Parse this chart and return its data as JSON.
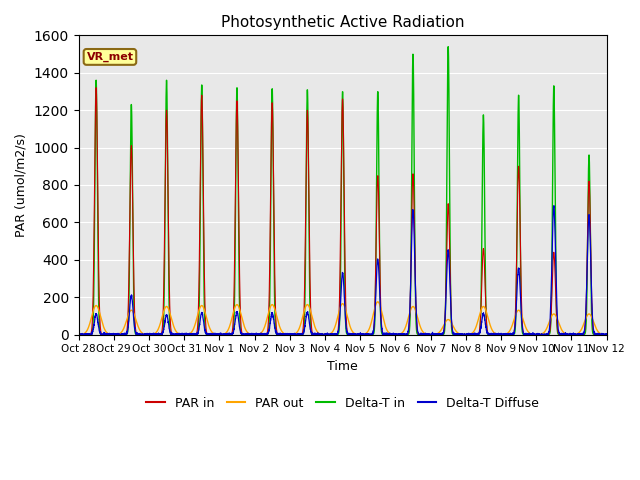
{
  "title": "Photosynthetic Active Radiation",
  "ylabel": "PAR (umol/m2/s)",
  "xlabel": "Time",
  "label_text": "VR_met",
  "ylim": [
    0,
    1600
  ],
  "background_color": "#e8e8e8",
  "line_colors": {
    "par_in": "#cc0000",
    "par_out": "#ffa500",
    "delta_t_in": "#00bb00",
    "delta_t_diffuse": "#0000cc"
  },
  "legend_labels": [
    "PAR in",
    "PAR out",
    "Delta-T in",
    "Delta-T Diffuse"
  ],
  "tick_labels": [
    "Oct 28",
    "Oct 29",
    "Oct 30",
    "Oct 31",
    "Nov 1",
    "Nov 2",
    "Nov 3",
    "Nov 4",
    "Nov 5",
    "Nov 6",
    "Nov 7",
    "Nov 8",
    "Nov 9",
    "Nov 10",
    "Nov 11",
    "Nov 12"
  ],
  "n_days": 15,
  "peaks_par_in": [
    1320,
    1010,
    1200,
    1280,
    1250,
    1240,
    1200,
    1260,
    850,
    860,
    700,
    460,
    900,
    440,
    820
  ],
  "peaks_par_out": [
    155,
    130,
    150,
    155,
    160,
    160,
    160,
    165,
    175,
    150,
    80,
    150,
    130,
    110,
    110
  ],
  "peaks_delta_t_in": [
    1360,
    1230,
    1360,
    1335,
    1320,
    1315,
    1310,
    1300,
    1300,
    1500,
    1540,
    1175,
    1280,
    1330,
    960
  ],
  "peaks_delta_t_diffuse": [
    110,
    210,
    105,
    115,
    120,
    115,
    120,
    330,
    405,
    665,
    450,
    110,
    355,
    690,
    640
  ]
}
